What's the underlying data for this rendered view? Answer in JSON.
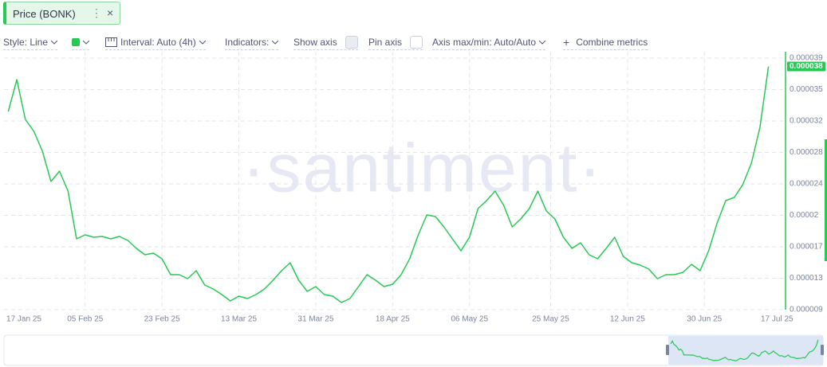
{
  "tab": {
    "close": "×"
  },
  "toolbar": {
    "style": "Style: Line",
    "interval": "Interval: Auto (4h)",
    "indicators": "Indicators:",
    "show_axis": "Show axis",
    "pin_axis": "Pin axis",
    "axis_minmax": "Axis max/min: Auto/Auto",
    "combine": "Combine metrics"
  },
  "watermark": "·santiment·",
  "chart_data": {
    "type": "line",
    "x": [
      "2025-01-18",
      "2025-01-20",
      "2025-01-22",
      "2025-01-24",
      "2025-01-26",
      "2025-01-28",
      "2025-01-30",
      "2025-02-01",
      "2025-02-03",
      "2025-02-05",
      "2025-02-07",
      "2025-02-09",
      "2025-02-11",
      "2025-02-13",
      "2025-02-15",
      "2025-02-17",
      "2025-02-19",
      "2025-02-21",
      "2025-02-23",
      "2025-02-25",
      "2025-02-27",
      "2025-03-01",
      "2025-03-03",
      "2025-03-05",
      "2025-03-07",
      "2025-03-09",
      "2025-03-11",
      "2025-03-13",
      "2025-03-15",
      "2025-03-17",
      "2025-03-19",
      "2025-03-21",
      "2025-03-23",
      "2025-03-25",
      "2025-03-27",
      "2025-03-29",
      "2025-03-31",
      "2025-04-02",
      "2025-04-04",
      "2025-04-06",
      "2025-04-08",
      "2025-04-10",
      "2025-04-12",
      "2025-04-14",
      "2025-04-16",
      "2025-04-18",
      "2025-04-20",
      "2025-04-22",
      "2025-04-24",
      "2025-04-26",
      "2025-04-28",
      "2025-04-30",
      "2025-05-02",
      "2025-05-04",
      "2025-05-06",
      "2025-05-08",
      "2025-05-10",
      "2025-05-12",
      "2025-05-14",
      "2025-05-16",
      "2025-05-18",
      "2025-05-20",
      "2025-05-22",
      "2025-05-24",
      "2025-05-26",
      "2025-05-28",
      "2025-05-30",
      "2025-06-01",
      "2025-06-03",
      "2025-06-05",
      "2025-06-07",
      "2025-06-09",
      "2025-06-11",
      "2025-06-13",
      "2025-06-15",
      "2025-06-17",
      "2025-06-19",
      "2025-06-21",
      "2025-06-23",
      "2025-06-25",
      "2025-06-27",
      "2025-06-29",
      "2025-07-01",
      "2025-07-03",
      "2025-07-05",
      "2025-07-07",
      "2025-07-09",
      "2025-07-11",
      "2025-07-13",
      "2025-07-15"
    ],
    "series": [
      {
        "name": "Price (BONK)",
        "color": "#26c953",
        "values": [
          3.264e-05,
          3.644e-05,
          3.169e-05,
          3.027e-05,
          2.789e-05,
          2.429e-05,
          2.552e-05,
          2.315e-05,
          1.745e-05,
          1.792e-05,
          1.764e-05,
          1.773e-05,
          1.745e-05,
          1.773e-05,
          1.726e-05,
          1.631e-05,
          1.555e-05,
          1.574e-05,
          1.508e-05,
          1.318e-05,
          1.318e-05,
          1.27e-05,
          1.365e-05,
          1.194e-05,
          1.147e-05,
          1.08e-05,
          1.004e-05,
          1.061e-05,
          1.033e-05,
          1.08e-05,
          1.147e-05,
          1.251e-05,
          1.365e-05,
          1.46e-05,
          1.251e-05,
          1.118e-05,
          1.175e-05,
          1.08e-05,
          1.061e-05,
          9.85e-06,
          1.033e-05,
          1.175e-05,
          1.318e-05,
          1.251e-05,
          1.175e-05,
          1.204e-05,
          1.318e-05,
          1.508e-05,
          1.792e-05,
          2.03e-05,
          2.011e-05,
          1.887e-05,
          1.745e-05,
          1.603e-05,
          1.764e-05,
          2.106e-05,
          2.201e-05,
          2.315e-05,
          2.144e-05,
          1.887e-05,
          1.982e-05,
          2.106e-05,
          2.315e-05,
          2.077e-05,
          1.982e-05,
          1.764e-05,
          1.631e-05,
          1.697e-05,
          1.555e-05,
          1.508e-05,
          1.631e-05,
          1.764e-05,
          1.536e-05,
          1.46e-05,
          1.432e-05,
          1.384e-05,
          1.27e-05,
          1.318e-05,
          1.318e-05,
          1.346e-05,
          1.441e-05,
          1.365e-05,
          1.603e-05,
          1.935e-05,
          2.201e-05,
          2.239e-05,
          2.391e-05,
          2.647e-05,
          3.074e-05,
          3.8e-05
        ]
      }
    ],
    "xlim": [
      "2025-01-17",
      "2025-07-19"
    ],
    "xticks": [
      {
        "value": "2025-01-17",
        "label": "17 Jan 25"
      },
      {
        "value": "2025-02-05",
        "label": "05 Feb 25"
      },
      {
        "value": "2025-02-23",
        "label": "23 Feb 25"
      },
      {
        "value": "2025-03-13",
        "label": "13 Mar 25"
      },
      {
        "value": "2025-03-31",
        "label": "31 Mar 25"
      },
      {
        "value": "2025-04-18",
        "label": "18 Apr 25"
      },
      {
        "value": "2025-05-06",
        "label": "06 May 25"
      },
      {
        "value": "2025-05-25",
        "label": "25 May 25"
      },
      {
        "value": "2025-06-12",
        "label": "12 Jun 25"
      },
      {
        "value": "2025-06-30",
        "label": "30 Jun 25"
      },
      {
        "value": "2025-07-17",
        "label": "17 Jul 25"
      }
    ],
    "ylim": [
      9e-06,
      3.9e-05
    ],
    "yticks": [
      9e-06,
      {
        "value": 1.275e-05,
        "label": "0.000013"
      },
      {
        "value": 1.65e-05,
        "label": "0.000017"
      },
      {
        "value": 2.025e-05,
        "label": "0.00002"
      },
      2.4e-05,
      {
        "value": 2.775e-05,
        "label": "0.000028"
      },
      {
        "value": 3.15e-05,
        "label": "0.000032"
      },
      {
        "value": 3.525e-05,
        "label": "0.000035"
      },
      3.9e-05
    ],
    "grid": true
  }
}
